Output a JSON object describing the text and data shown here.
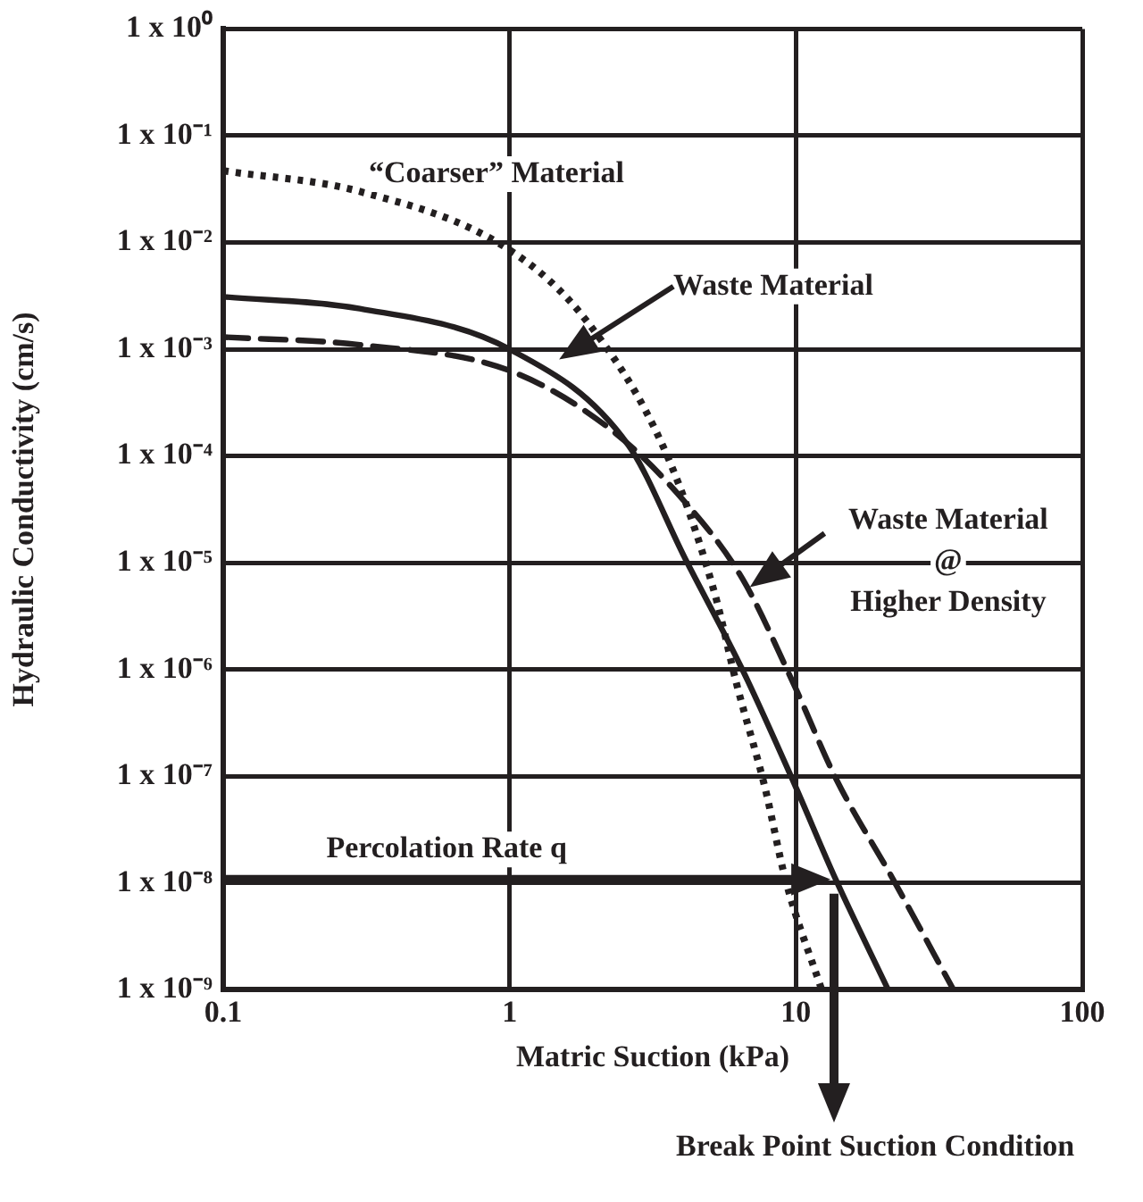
{
  "chart_data": {
    "type": "line",
    "xlabel": "Matric Suction (kPa)",
    "ylabel": "Hydraulic Conductivity (cm/s)",
    "log": "xy",
    "grid": true,
    "legend": false,
    "marker": "none",
    "xlim": [
      0.1,
      100
    ],
    "xticks": [
      0.1,
      1,
      10,
      100
    ],
    "ylim": [
      1e-09,
      1
    ],
    "yticks": [
      {
        "value": 1e-09,
        "label": "1 x 10⁻⁹"
      },
      {
        "value": 1e-08,
        "label": "1 x 10⁻⁸"
      },
      {
        "value": 1e-07,
        "label": "1 x 10⁻⁷"
      },
      {
        "value": 1e-06,
        "label": "1 x 10⁻⁶"
      },
      {
        "value": 1e-05,
        "label": "1 x 10⁻⁵"
      },
      {
        "value": 0.0001,
        "label": "1 x 10⁻⁴"
      },
      {
        "value": 0.001,
        "label": "1 x 10⁻³"
      },
      {
        "value": 0.01,
        "label": "1 x 10⁻²"
      },
      {
        "value": 0.1,
        "label": "1 x 10⁻¹"
      },
      {
        "value": 1,
        "label": "1 x 10⁰"
      }
    ],
    "series": [
      {
        "color": "#231f20",
        "line_style": "dotted",
        "x": [
          0.1,
          0.3,
          1,
          1.87,
          3.5,
          5.2,
          6.2,
          7.8,
          9.2,
          12.3
        ],
        "values": [
          0.047,
          0.03,
          0.0085,
          0.0018,
          0.00011,
          5.2e-06,
          7.4e-07,
          7.8e-08,
          1.07e-08,
          1e-09
        ]
      },
      {
        "color": "#231f20",
        "line_style": "solid",
        "x": [
          0.1,
          0.3,
          1,
          2.6,
          4.1,
          6.5,
          9.8,
          13.8,
          21
        ],
        "values": [
          0.0031,
          0.0024,
          0.001,
          0.000126,
          1.1e-05,
          1e-06,
          8.9e-08,
          1.07e-08,
          1e-09
        ]
      },
      {
        "color": "#231f20",
        "line_style": "dashed",
        "x": [
          0.1,
          0.3,
          1,
          2.3,
          4.1,
          6.5,
          9.8,
          13.8,
          21.9,
          35.5
        ],
        "values": [
          0.0013,
          0.0011,
          0.00063,
          0.00017,
          3.7e-05,
          7.1e-06,
          7.4e-07,
          9.5e-08,
          1.07e-08,
          1e-09
        ]
      }
    ],
    "annotations": [
      "“Coarser” Material",
      "Waste Material",
      "Waste Material\n@\nHigher Density",
      "Percolation Rate q",
      "Break Point Suction Condition"
    ]
  }
}
